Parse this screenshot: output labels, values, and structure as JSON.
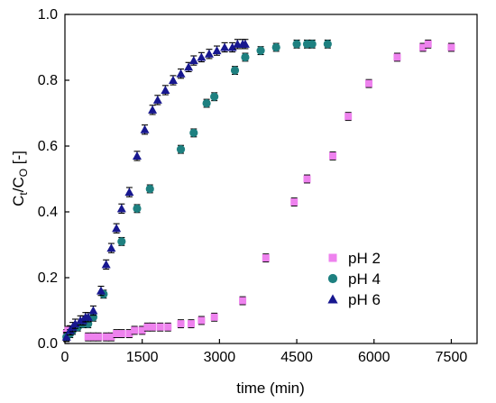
{
  "chart_data": {
    "type": "scatter",
    "xlabel": "time (min)",
    "ylabel": {
      "base": "C",
      "sub1": "t",
      "mid": "/C",
      "sub2": "O",
      "tail": " [-]"
    },
    "xlim": [
      0,
      8000
    ],
    "ylim": [
      0,
      1.0
    ],
    "x_ticks": [
      0,
      1500,
      3000,
      4500,
      6000,
      7500
    ],
    "x_tick_labels": [
      "0",
      "1500",
      "3000",
      "4500",
      "6000",
      "7500"
    ],
    "y_ticks": [
      0.0,
      0.2,
      0.4,
      0.6,
      0.8,
      1.0
    ],
    "y_tick_labels": [
      "0.0",
      "0.2",
      "0.4",
      "0.6",
      "0.8",
      "1.0"
    ],
    "grid": false,
    "legend_position": "lower-right",
    "error_bars": true,
    "series": [
      {
        "name": "pH 2",
        "marker": "square",
        "color": "#ee82ee",
        "err": 0.012,
        "x": [
          30,
          60,
          450,
          550,
          650,
          800,
          900,
          1000,
          1100,
          1250,
          1350,
          1500,
          1600,
          1700,
          1850,
          2000,
          2250,
          2450,
          2650,
          2900,
          3450,
          3900,
          4450,
          4700,
          5200,
          5500,
          5900,
          6450,
          6950,
          7050,
          7500
        ],
        "y": [
          0.03,
          0.04,
          0.02,
          0.02,
          0.02,
          0.02,
          0.02,
          0.03,
          0.03,
          0.03,
          0.04,
          0.04,
          0.05,
          0.05,
          0.05,
          0.05,
          0.06,
          0.06,
          0.07,
          0.08,
          0.13,
          0.26,
          0.43,
          0.5,
          0.57,
          0.69,
          0.79,
          0.87,
          0.9,
          0.91,
          0.9
        ]
      },
      {
        "name": "pH 4",
        "marker": "circle",
        "color": "#1e8080",
        "err": 0.012,
        "x": [
          30,
          100,
          150,
          250,
          350,
          450,
          550,
          750,
          1100,
          1400,
          1650,
          2250,
          2500,
          2750,
          2900,
          3300,
          3500,
          3800,
          4100,
          4500,
          4700,
          4800,
          5100
        ],
        "y": [
          0.02,
          0.03,
          0.04,
          0.05,
          0.06,
          0.06,
          0.08,
          0.15,
          0.31,
          0.41,
          0.47,
          0.59,
          0.64,
          0.73,
          0.75,
          0.83,
          0.87,
          0.89,
          0.9,
          0.91,
          0.91,
          0.91,
          0.91
        ]
      },
      {
        "name": "pH 6",
        "marker": "triangle",
        "color": "#17178f",
        "err": 0.014,
        "x": [
          30,
          100,
          150,
          200,
          300,
          350,
          400,
          450,
          550,
          700,
          800,
          900,
          1000,
          1100,
          1250,
          1400,
          1550,
          1700,
          1800,
          1950,
          2100,
          2250,
          2400,
          2500,
          2650,
          2800,
          2950,
          3100,
          3250,
          3350,
          3450,
          3500
        ],
        "y": [
          0.02,
          0.04,
          0.05,
          0.06,
          0.07,
          0.07,
          0.08,
          0.08,
          0.1,
          0.16,
          0.24,
          0.29,
          0.35,
          0.41,
          0.46,
          0.57,
          0.65,
          0.71,
          0.74,
          0.77,
          0.8,
          0.82,
          0.84,
          0.86,
          0.87,
          0.88,
          0.89,
          0.9,
          0.9,
          0.91,
          0.91,
          0.91
        ]
      }
    ]
  }
}
